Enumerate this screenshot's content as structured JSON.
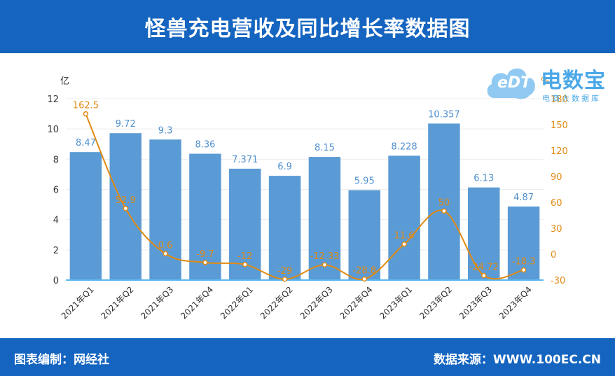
{
  "header": {
    "title": "怪兽充电营收及同比增长率数据图"
  },
  "footer": {
    "left": "图表编制：网经社",
    "right": "数据来源：WWW.100EC.CN"
  },
  "logo": {
    "badge": "eDT",
    "main": "电数宝",
    "sub": "电商大数据库"
  },
  "chart_data": {
    "type": "bar",
    "categories": [
      "2021年Q1",
      "2021年Q2",
      "2021年Q3",
      "2021年Q4",
      "2022年Q1",
      "2022年Q2",
      "2022年Q3",
      "2022年Q4",
      "2023年Q1",
      "2023年Q2",
      "2023年Q3",
      "2023年Q4"
    ],
    "series": [
      {
        "type": "bar",
        "values": [
          8.47,
          9.72,
          9.3,
          8.36,
          7.371,
          6.9,
          8.15,
          5.95,
          8.228,
          10.357,
          6.13,
          4.87
        ],
        "labels": [
          "8.47",
          "9.72",
          "9.3",
          "8.36",
          "7.371",
          "6.9",
          "8.15",
          "5.95",
          "8.228",
          "10.357",
          "6.13",
          "4.87"
        ],
        "color": "#5b9bd5",
        "axis": "left"
      },
      {
        "type": "line",
        "values": [
          162.5,
          52.9,
          0.6,
          -9.7,
          -12,
          -29,
          -12.33,
          -28.8,
          11.6,
          50,
          -24.72,
          -18.3
        ],
        "labels": [
          "162.5",
          "52.9",
          "0.6",
          "-9.7",
          "-12",
          "-29",
          "-12.33",
          "-28.8",
          "11.6",
          "50",
          "-24.72",
          "-18.3"
        ],
        "color": "#e08a13",
        "axis": "right"
      }
    ],
    "ylabel": "亿",
    "y2label": "%",
    "ylim": [
      0,
      12
    ],
    "y2lim": [
      -30,
      180
    ],
    "yticks": [
      0,
      2,
      4,
      6,
      8,
      10,
      12
    ],
    "y2ticks": [
      -30,
      0,
      30,
      60,
      90,
      120,
      150,
      180
    ],
    "grid": true,
    "legend": "none"
  }
}
